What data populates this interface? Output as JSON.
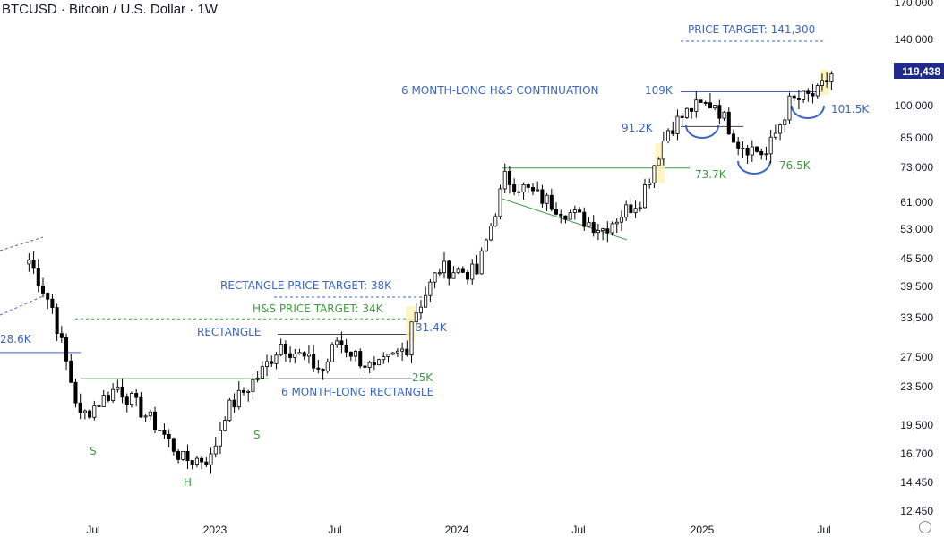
{
  "header": {
    "title": "BTCUSD · Bitcoin / U.S. Dollar · 1W"
  },
  "price_axis": {
    "ticks": [
      "170,000",
      "140,000",
      "100,000",
      "85,000",
      "73,000",
      "61,000",
      "53,000",
      "45,500",
      "39,500",
      "33,500",
      "27,500",
      "23,500",
      "19,500",
      "16,700",
      "14,450",
      "12,450"
    ],
    "current_price": "119,438",
    "current_price_color": "#1f2a8a"
  },
  "time_axis": {
    "labels": [
      "Jul",
      "2023",
      "Jul",
      "2024",
      "Jul",
      "2025",
      "Jul"
    ]
  },
  "annotations": {
    "price_target": "PRICE TARGET: 141,300",
    "continuation": "6 MONTH-LONG H&S CONTINUATION",
    "level_109k": "109K",
    "level_101_5k": "101.5K",
    "level_91_2k": "91.2K",
    "level_73_7k": "73.7K",
    "level_76_5k": "76.5K",
    "rect_target": "RECTANGLE PRICE TARGET: 38K",
    "hs_target": "H&S PRICE TARGET: 34K",
    "level_31_4k": "31.4K",
    "rectangle": "RECTANGLE",
    "level_28_6k": "28.6K",
    "level_25k": "25K",
    "six_month_rect": "6 MONTH-LONG RECTANGLE",
    "left_s": "S",
    "head_h": "H",
    "right_s": "S"
  },
  "colors": {
    "up_candle": "#ffffff",
    "down_candle": "#000000",
    "candle_outline": "#000000",
    "blue_annotation": "#3b66c4",
    "green_annotation": "#3f9a3f",
    "highlight": "#fff2b0"
  },
  "chart_data": {
    "type": "candlestick",
    "symbol": "BTCUSD",
    "timeframe": "1W",
    "y_scale": "log",
    "ylim": [
      12000,
      175000
    ],
    "x_range": [
      "2022-04",
      "2025-09"
    ],
    "close_path": [
      [
        "2022-03-28",
        46000
      ],
      [
        "2022-05-02",
        36000
      ],
      [
        "2022-06-13",
        20500
      ],
      [
        "2022-08-08",
        24000
      ],
      [
        "2022-10-10",
        19300
      ],
      [
        "2022-11-14",
        16500
      ],
      [
        "2022-12-26",
        16600
      ],
      [
        "2023-01-16",
        21000
      ],
      [
        "2023-03-13",
        26000
      ],
      [
        "2023-04-10",
        30000
      ],
      [
        "2023-06-12",
        26000
      ],
      [
        "2023-07-03",
        30500
      ],
      [
        "2023-08-28",
        26000
      ],
      [
        "2023-10-16",
        29500
      ],
      [
        "2023-10-23",
        34000
      ],
      [
        "2023-12-04",
        44000
      ],
      [
        "2024-01-29",
        43000
      ],
      [
        "2024-03-11",
        70000
      ],
      [
        "2024-05-06",
        63000
      ],
      [
        "2024-07-01",
        57000
      ],
      [
        "2024-08-05",
        54000
      ],
      [
        "2024-09-30",
        63000
      ],
      [
        "2024-11-11",
        90000
      ],
      [
        "2024-12-16",
        100000
      ],
      [
        "2025-01-20",
        103000
      ],
      [
        "2025-02-24",
        84000
      ],
      [
        "2025-04-07",
        79000
      ],
      [
        "2025-05-12",
        103000
      ],
      [
        "2025-06-23",
        108000
      ],
      [
        "2025-07-14",
        119438
      ]
    ],
    "levels": [
      {
        "label": "28.6K",
        "value": 28600
      },
      {
        "label": "25K",
        "value": 25000
      },
      {
        "label": "31.4K",
        "value": 31400
      },
      {
        "label": "H&S PRICE TARGET: 34K",
        "value": 34000
      },
      {
        "label": "RECTANGLE PRICE TARGET: 38K",
        "value": 38000
      },
      {
        "label": "73.7K",
        "value": 73700
      },
      {
        "label": "76.5K",
        "value": 76500
      },
      {
        "label": "91.2K",
        "value": 91200
      },
      {
        "label": "109K",
        "value": 109000
      },
      {
        "label": "101.5K",
        "value": 101500
      },
      {
        "label": "PRICE TARGET: 141,300",
        "value": 141300
      }
    ],
    "last_price": 119438
  }
}
